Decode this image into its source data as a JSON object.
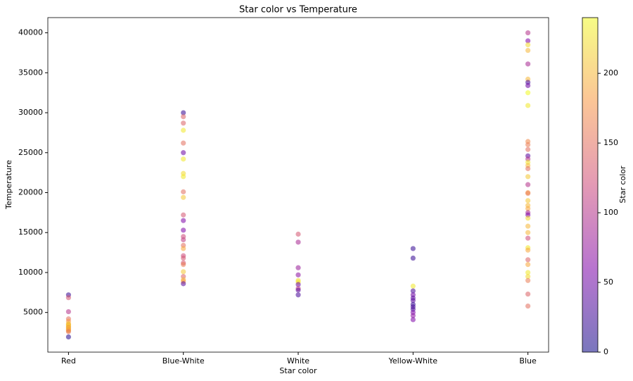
{
  "chart_data": {
    "type": "scatter",
    "title": "Star color vs Temperature",
    "x_label": "Star color",
    "y_label": "Temperature",
    "colorbar_label": "Star color",
    "categories": [
      "Red",
      "Blue-White",
      "White",
      "Yellow-White",
      "Blue"
    ],
    "x": [
      "Red",
      "Red",
      "Red",
      "Red",
      "Red",
      "Red",
      "Red",
      "Red",
      "Red",
      "Red",
      "Red",
      "Red",
      "Red",
      "Red",
      "Red",
      "Red",
      "Red",
      "Blue-White",
      "Blue-White",
      "Blue-White",
      "Blue-White",
      "Blue-White",
      "Blue-White",
      "Blue-White",
      "Blue-White",
      "Blue-White",
      "Blue-White",
      "Blue-White",
      "Blue-White",
      "Blue-White",
      "Blue-White",
      "Blue-White",
      "Blue-White",
      "Blue-White",
      "Blue-White",
      "Blue-White",
      "Blue-White",
      "Blue-White",
      "Blue-White",
      "Blue-White",
      "Blue-White",
      "Blue-White",
      "Blue-White",
      "Blue-White",
      "White",
      "White",
      "White",
      "White",
      "White",
      "White",
      "White",
      "White",
      "White",
      "White",
      "Yellow-White",
      "Yellow-White",
      "Yellow-White",
      "Yellow-White",
      "Yellow-White",
      "Yellow-White",
      "Yellow-White",
      "Yellow-White",
      "Yellow-White",
      "Yellow-White",
      "Yellow-White",
      "Yellow-White",
      "Yellow-White",
      "Blue",
      "Blue",
      "Blue",
      "Blue",
      "Blue",
      "Blue",
      "Blue",
      "Blue",
      "Blue",
      "Blue",
      "Blue",
      "Blue",
      "Blue",
      "Blue",
      "Blue",
      "Blue",
      "Blue",
      "Blue",
      "Blue",
      "Blue",
      "Blue",
      "Blue",
      "Blue",
      "Blue",
      "Blue",
      "Blue",
      "Blue",
      "Blue",
      "Blue",
      "Blue",
      "Blue",
      "Blue",
      "Blue",
      "Blue",
      "Blue",
      "Blue",
      "Blue",
      "Blue",
      "Blue",
      "Blue"
    ],
    "values": [
      7200,
      6850,
      5100,
      4200,
      3900,
      3600,
      3500,
      3400,
      3300,
      3200,
      3100,
      3000,
      2900,
      2800,
      2700,
      2600,
      1939,
      30000,
      29500,
      28700,
      27800,
      26200,
      25000,
      24200,
      22400,
      22000,
      20100,
      19400,
      17200,
      16500,
      15300,
      14500,
      14100,
      13400,
      13000,
      12100,
      11800,
      11200,
      11000,
      10100,
      9500,
      9100,
      8900,
      8600,
      14800,
      13800,
      10600,
      9700,
      9000,
      8800,
      8500,
      8000,
      7800,
      7200,
      13000,
      11800,
      8300,
      7700,
      7200,
      6800,
      6500,
      6000,
      5700,
      5400,
      5000,
      4600,
      4100,
      40000,
      39000,
      38500,
      37800,
      36100,
      34200,
      33800,
      33400,
      32500,
      30900,
      26400,
      26000,
      25400,
      24600,
      24200,
      23800,
      23400,
      23000,
      22000,
      21000,
      20000,
      19900,
      19000,
      18400,
      18000,
      17500,
      17200,
      16800,
      15800,
      15000,
      14300,
      13100,
      12800,
      11600,
      11000,
      10000,
      9500,
      9000,
      7300,
      5800
    ],
    "color_values": [
      20,
      130,
      100,
      150,
      180,
      200,
      210,
      190,
      220,
      200,
      170,
      210,
      190,
      180,
      200,
      150,
      10,
      20,
      140,
      140,
      230,
      150,
      50,
      230,
      220,
      230,
      150,
      210,
      130,
      60,
      60,
      120,
      110,
      150,
      190,
      120,
      130,
      130,
      160,
      210,
      140,
      200,
      180,
      40,
      130,
      90,
      80,
      70,
      220,
      230,
      50,
      110,
      40,
      30,
      20,
      20,
      230,
      30,
      50,
      40,
      40,
      20,
      30,
      30,
      60,
      70,
      60,
      100,
      60,
      220,
      200,
      90,
      200,
      30,
      50,
      240,
      230,
      170,
      160,
      150,
      40,
      100,
      230,
      200,
      150,
      210,
      100,
      180,
      160,
      210,
      200,
      190,
      90,
      60,
      220,
      200,
      200,
      120,
      230,
      190,
      140,
      190,
      230,
      220,
      160,
      140,
      150
    ],
    "xlim": [
      -0.18,
      4.18
    ],
    "ylim": [
      36,
      41903
    ],
    "yticks": [
      5000,
      10000,
      15000,
      20000,
      25000,
      30000,
      35000,
      40000
    ],
    "clim": [
      0,
      240
    ],
    "cticks": [
      0,
      50,
      100,
      150,
      200
    ],
    "colormap": "plasma",
    "alpha": 0.55
  }
}
